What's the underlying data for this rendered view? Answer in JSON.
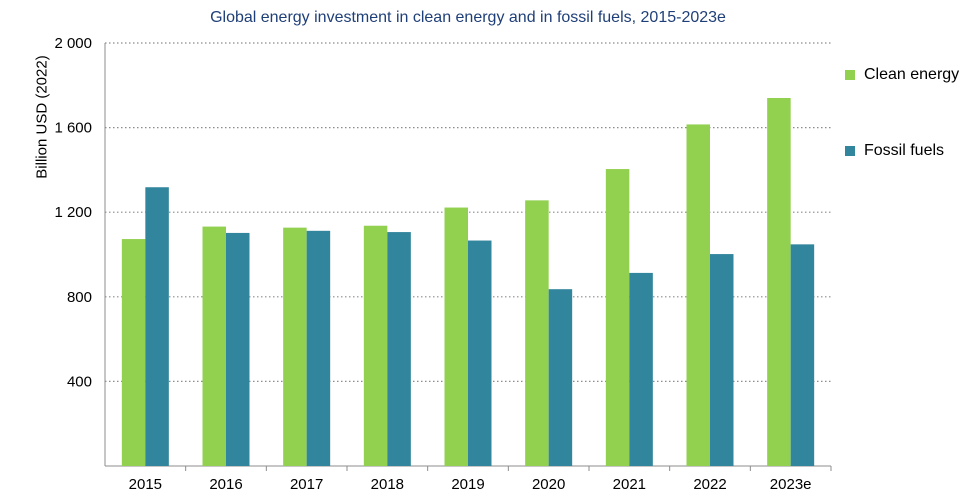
{
  "chart_data": {
    "type": "bar",
    "title": "Global energy investment in clean energy and in fossil fuels, 2015-2023e",
    "xlabel": "",
    "ylabel": "Billion USD (2022)",
    "ylim": [
      0,
      2000
    ],
    "yticks": [
      400,
      800,
      1200,
      1600,
      2000
    ],
    "ytick_labels": [
      "400",
      "800",
      "1 200",
      "1 600",
      "2 000"
    ],
    "categories": [
      "2015",
      "2016",
      "2017",
      "2018",
      "2019",
      "2020",
      "2021",
      "2022",
      "2023e"
    ],
    "series": [
      {
        "name": "Clean energy",
        "color": "#92d050",
        "values": [
          1073,
          1132,
          1127,
          1136,
          1222,
          1256,
          1404,
          1615,
          1740
        ]
      },
      {
        "name": "Fossil fuels",
        "color": "#31859c",
        "values": [
          1318,
          1102,
          1112,
          1106,
          1066,
          836,
          913,
          1002,
          1048
        ]
      }
    ],
    "grid": "horizontal dotted",
    "legend": "right"
  }
}
